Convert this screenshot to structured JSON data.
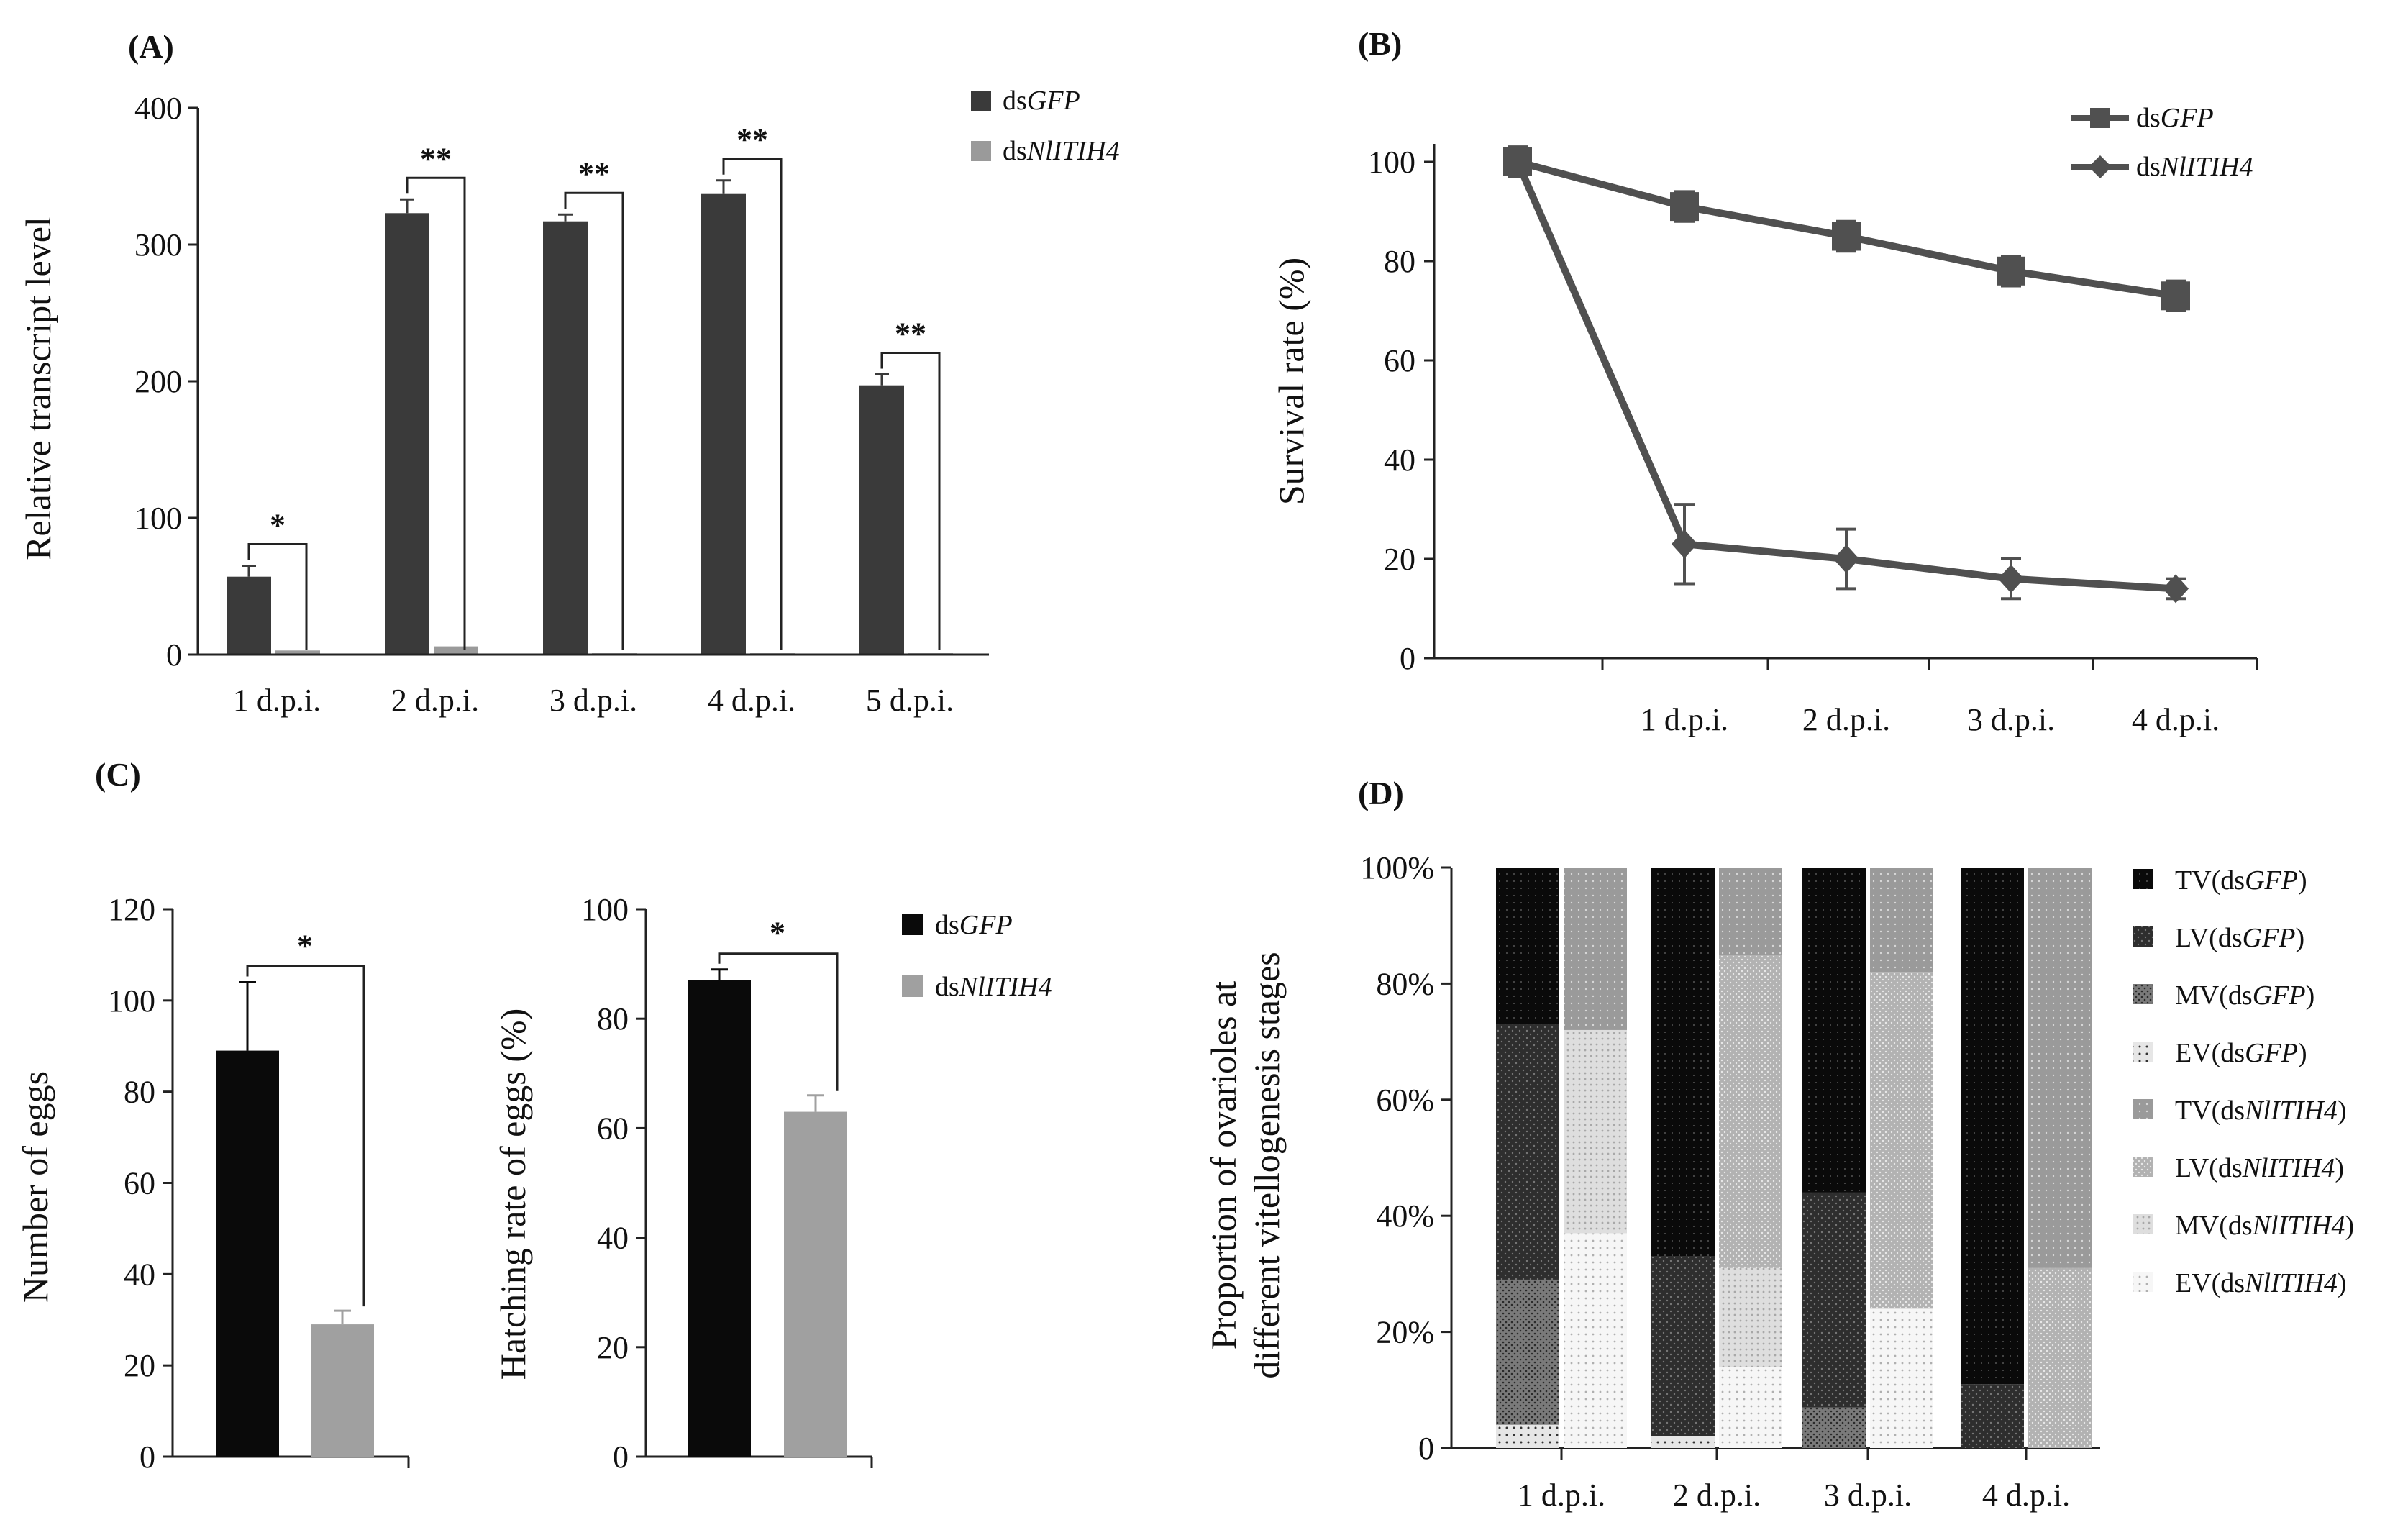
{
  "panels": {
    "a": {
      "label": "(A)"
    },
    "b": {
      "label": "(B)"
    },
    "c": {
      "label": "(C)"
    },
    "d": {
      "label": "(D)"
    }
  },
  "colors": {
    "gfp_dark": "#3a3a3a",
    "nl_light": "#9a9a9a",
    "gfp_black": "#0a0a0a",
    "nl_grey": "#a0a0a0",
    "line": "#505050"
  },
  "chart_data": [
    {
      "id": "A",
      "type": "bar",
      "ylabel": "Relative transcript level",
      "ylim": [
        0,
        400
      ],
      "yticks": [
        0,
        100,
        200,
        300,
        400
      ],
      "categories": [
        "1 d.p.i.",
        "2 d.p.i.",
        "3 d.p.i.",
        "4 d.p.i.",
        "5 d.p.i."
      ],
      "series": [
        {
          "name_pre": "ds",
          "name_it": "GFP",
          "values": [
            57,
            323,
            317,
            337,
            197
          ],
          "errors": [
            8,
            10,
            5,
            10,
            8
          ]
        },
        {
          "name_pre": "ds",
          "name_it": "NlITIH4",
          "values": [
            3,
            6,
            1,
            1,
            1
          ],
          "errors": [
            0,
            0,
            0,
            0,
            0
          ]
        }
      ],
      "significance": [
        "*",
        "**",
        "**",
        "**",
        "**"
      ],
      "legend_position": "top-right"
    },
    {
      "id": "B",
      "type": "line",
      "ylabel": "Survival rate (%)",
      "ylim": [
        0,
        100
      ],
      "yticks": [
        0,
        20,
        40,
        60,
        80,
        100
      ],
      "categories": [
        "",
        "1 d.p.i.",
        "2 d.p.i.",
        "3 d.p.i.",
        "4 d.p.i."
      ],
      "series": [
        {
          "name_pre": "ds",
          "name_it": "GFP",
          "marker": "square",
          "values": [
            100,
            91,
            85,
            78,
            73
          ],
          "errors": [
            3,
            3,
            3,
            3,
            3
          ]
        },
        {
          "name_pre": "ds",
          "name_it": "NlITIH4",
          "marker": "diamond",
          "values": [
            100,
            23,
            20,
            16,
            14
          ],
          "errors": [
            3,
            8,
            6,
            4,
            2
          ]
        }
      ],
      "legend_position": "top-right"
    },
    {
      "id": "C1",
      "type": "bar",
      "ylabel": "Number of eggs",
      "ylim": [
        0,
        120
      ],
      "yticks": [
        0,
        20,
        40,
        60,
        80,
        100,
        120
      ],
      "series": [
        {
          "name_pre": "ds",
          "name_it": "GFP",
          "value": 89,
          "error": 15
        },
        {
          "name_pre": "ds",
          "name_it": "NlITIH4",
          "value": 29,
          "error": 3
        }
      ],
      "significance": "*"
    },
    {
      "id": "C2",
      "type": "bar",
      "ylabel": "Hatching rate of eggs (%)",
      "ylim": [
        0,
        100
      ],
      "yticks": [
        0,
        20,
        40,
        60,
        80,
        100
      ],
      "series": [
        {
          "name_pre": "ds",
          "name_it": "GFP",
          "value": 87,
          "error": 2
        },
        {
          "name_pre": "ds",
          "name_it": "NlITIH4",
          "value": 63,
          "error": 3
        }
      ],
      "significance": "*",
      "legend_position": "top-right"
    },
    {
      "id": "D",
      "type": "bar",
      "stacked": true,
      "ylabel_lines": [
        "Proportion of ovarioles at",
        "different vitellogenesis stages"
      ],
      "yticks": [
        "0",
        "20%",
        "40%",
        "60%",
        "80%",
        "100%"
      ],
      "ylim": [
        0,
        100
      ],
      "categories": [
        "1 d.p.i.",
        "2 d.p.i.",
        "3 d.p.i.",
        "4 d.p.i."
      ],
      "stages": [
        {
          "pre": "EV(ds",
          "it": "GFP",
          "post": ")",
          "group": "gfp"
        },
        {
          "pre": "MV(ds",
          "it": "GFP",
          "post": ")",
          "group": "gfp"
        },
        {
          "pre": "LV(ds",
          "it": "GFP",
          "post": ")",
          "group": "gfp"
        },
        {
          "pre": "TV(ds",
          "it": "GFP",
          "post": ")",
          "group": "gfp"
        },
        {
          "pre": "EV(ds",
          "it": "NlITIH4",
          "post": ")",
          "group": "nl"
        },
        {
          "pre": "MV(ds",
          "it": "NlITIH4",
          "post": ")",
          "group": "nl"
        },
        {
          "pre": "LV(ds",
          "it": "NlITIH4",
          "post": ")",
          "group": "nl"
        },
        {
          "pre": "TV(ds",
          "it": "NlITIH4",
          "post": ")",
          "group": "nl"
        }
      ],
      "gfp_segments": [
        [
          4,
          25,
          44,
          27
        ],
        [
          2,
          0,
          31,
          67
        ],
        [
          0,
          7,
          37,
          56
        ],
        [
          0,
          0,
          11,
          89
        ]
      ],
      "nl_segments": [
        [
          37,
          35,
          0,
          28
        ],
        [
          14,
          17,
          54,
          15
        ],
        [
          24,
          0,
          58,
          18
        ],
        [
          0,
          0,
          31,
          69
        ]
      ],
      "legend_order": [
        3,
        2,
        1,
        0,
        7,
        6,
        5,
        4
      ],
      "legend_position": "right"
    }
  ]
}
